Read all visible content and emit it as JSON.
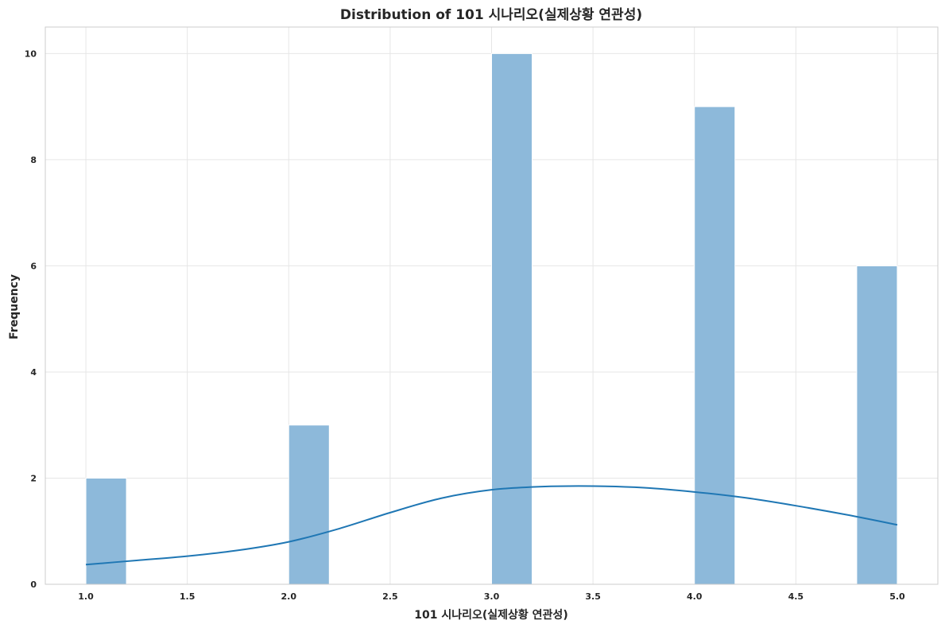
{
  "chart_data": {
    "type": "bar",
    "title": "Distribution of 101 시나리오(실제상황 연관성)",
    "xlabel": "101 시나리오(실제상황 연관성)",
    "ylabel": "Frequency",
    "xlim": [
      0.8,
      5.2
    ],
    "ylim": [
      0,
      10.5
    ],
    "xticks": [
      "1.0",
      "1.5",
      "2.0",
      "2.5",
      "3.0",
      "3.5",
      "4.0",
      "4.5",
      "5.0"
    ],
    "yticks": [
      "0",
      "2",
      "4",
      "6",
      "8",
      "10"
    ],
    "grid": true,
    "bins": [
      {
        "x0": 1.0,
        "x1": 1.2,
        "count": 2
      },
      {
        "x0": 2.0,
        "x1": 2.2,
        "count": 3
      },
      {
        "x0": 3.0,
        "x1": 3.2,
        "count": 10
      },
      {
        "x0": 4.0,
        "x1": 4.2,
        "count": 9
      },
      {
        "x0": 4.8,
        "x1": 5.0,
        "count": 6
      }
    ],
    "kde": {
      "x": [
        1.0,
        1.25,
        1.5,
        1.75,
        2.0,
        2.25,
        2.5,
        2.75,
        3.0,
        3.25,
        3.5,
        3.75,
        4.0,
        4.25,
        4.5,
        4.75,
        5.0
      ],
      "y": [
        0.37,
        0.45,
        0.53,
        0.64,
        0.8,
        1.05,
        1.35,
        1.62,
        1.78,
        1.84,
        1.85,
        1.82,
        1.74,
        1.63,
        1.48,
        1.31,
        1.12
      ]
    },
    "colors": {
      "bar": "#8db9da",
      "bar_edge": "#ffffff",
      "kde": "#1f77b4"
    }
  }
}
